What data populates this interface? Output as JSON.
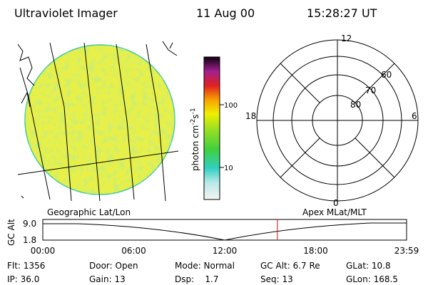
{
  "header": {
    "title": "Ultraviolet Imager",
    "date": "11 Aug 00",
    "time": "15:28:27 UT"
  },
  "colorbar": {
    "label": "photon cm",
    "exp1": "-2",
    "unit2": "s",
    "exp2": "-1",
    "ticks": [
      "100",
      "10"
    ]
  },
  "polar": {
    "top": "12",
    "left": "18",
    "right": "6",
    "bottom": "0",
    "rings": [
      "60",
      "70",
      "80"
    ]
  },
  "timeline": {
    "left_caption": "Geographic Lat/Lon",
    "right_caption": "Apex MLat/MLT",
    "ylabel": "GC Alt",
    "yticks": [
      "9.0",
      "1.8"
    ],
    "xticks": [
      "00:00",
      "06:00",
      "12:00",
      "18:00",
      "23:59"
    ]
  },
  "footer": [
    [
      "Flt: 1356",
      "Door: Open",
      "Mode: Normal",
      "GC Alt: 6.7 Re",
      "GLat: 10.8"
    ],
    [
      "IP: 36.0",
      "Gain: 13",
      "Dsp:    1.7",
      "Seq: 13",
      "GLon: 168.5"
    ]
  ]
}
